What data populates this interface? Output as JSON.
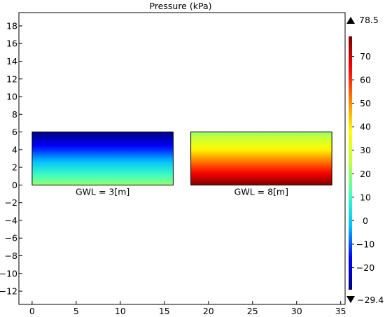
{
  "chart_data": {
    "type": "heatmap",
    "title": "Pressure (kPa)",
    "xlabel": "",
    "ylabel": "",
    "xlim": [
      -1.5,
      35.5
    ],
    "ylim": [
      -13.5,
      19.5
    ],
    "x_ticks": [
      0,
      5,
      10,
      15,
      20,
      25,
      30,
      35
    ],
    "y_ticks": [
      18,
      16,
      14,
      12,
      10,
      8,
      6,
      4,
      2,
      0,
      -2,
      -4,
      -6,
      -8,
      -10,
      -12
    ],
    "y_tick_labels": [
      "18",
      "16",
      "14",
      "12",
      "10",
      "8",
      "6",
      "4",
      "2",
      "0",
      "−2",
      "−4",
      "−6",
      "−8",
      "−10",
      "−12"
    ],
    "grid": false,
    "panels": [
      {
        "label": "GWL = 3[m]",
        "x_range": [
          0,
          16
        ],
        "y_range": [
          0,
          6
        ],
        "value_bottom": 20,
        "value_top": -29.4
      },
      {
        "label": "GWL = 8[m]",
        "x_range": [
          18,
          34
        ],
        "y_range": [
          0,
          6
        ],
        "value_bottom": 78.5,
        "value_top": 19.6
      }
    ],
    "colorbar": {
      "min": -29.4,
      "max": 78.5,
      "max_label": "78.5",
      "min_label": "−29.4",
      "ticks": [
        70,
        60,
        50,
        40,
        30,
        20,
        10,
        0,
        -10,
        -20
      ],
      "tick_labels": [
        "70",
        "60",
        "50",
        "40",
        "30",
        "20",
        "10",
        "0",
        "−10",
        "−20"
      ],
      "colormap": [
        "#00007f",
        "#0000ff",
        "#00bfff",
        "#40ffbf",
        "#bfff40",
        "#ffff00",
        "#ff8000",
        "#ff0000",
        "#7f0000"
      ]
    }
  }
}
